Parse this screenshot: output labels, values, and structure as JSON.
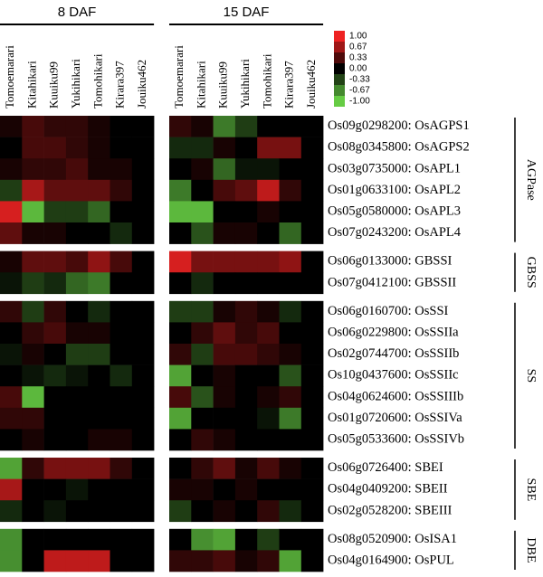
{
  "chart_data": {
    "type": "heatmap",
    "panels": [
      "8 DAF",
      "15 DAF"
    ],
    "columns": [
      "Tomoemarari",
      "Kitahikari",
      "Kuuiku99",
      "Yukihikari",
      "Tomohikari",
      "Kirara397",
      "Jouiku462"
    ],
    "colorscale": {
      "min": -1,
      "max": 1,
      "low": "#66cc44",
      "mid": "#000000",
      "high": "#ee2222"
    },
    "colorbar_ticks": [
      {
        "value": 1,
        "label": "1.00"
      },
      0.67,
      0.33,
      {
        "value": 0,
        "label": "0.00"
      },
      -0.33,
      -0.67,
      {
        "value": -1,
        "label": "-1.00"
      }
    ],
    "groups": [
      {
        "name": "AGPase",
        "rows": [
          {
            "label": "Os09g0298200: OsAGPS1",
            "values": [
              [
                0.1,
                0.3,
                0.2,
                0.2,
                0.1,
                0,
                0
              ],
              [
                0.2,
                0.1,
                -0.6,
                -0.3,
                0,
                0,
                0
              ]
            ]
          },
          {
            "label": "Os08g0345800: OsAGPS2",
            "values": [
              [
                0,
                0.3,
                0.3,
                0.2,
                0.1,
                0,
                0
              ],
              [
                -0.2,
                -0.2,
                0.1,
                0,
                0.5,
                0.5,
                0
              ]
            ]
          },
          {
            "label": "Os03g0735000: OsAPL1",
            "values": [
              [
                0.1,
                0.2,
                0.2,
                0.3,
                0.1,
                0.1,
                0
              ],
              [
                0,
                0.1,
                -0.5,
                -0.1,
                -0.1,
                0,
                0
              ]
            ]
          },
          {
            "label": "Os01g0633100: OsAPL2",
            "values": [
              [
                -0.3,
                0.7,
                0.4,
                0.4,
                0.4,
                0.2,
                0
              ],
              [
                -0.6,
                0,
                0.3,
                0.4,
                0.8,
                0.2,
                0
              ]
            ]
          },
          {
            "label": "Os05g0580000: OsAPL3",
            "values": [
              [
                0.9,
                -0.9,
                -0.3,
                -0.3,
                -0.5,
                0,
                0
              ],
              [
                -0.9,
                -0.9,
                0,
                0,
                0.1,
                0,
                0
              ]
            ]
          },
          {
            "label": "Os07g0243200: OsAPL4",
            "values": [
              [
                0.4,
                0.1,
                0.1,
                0,
                0,
                -0.2,
                0
              ],
              [
                0,
                -0.4,
                0.1,
                0.1,
                0,
                -0.5,
                0
              ]
            ]
          }
        ]
      },
      {
        "name": "GBSS",
        "rows": [
          {
            "label": "Os06g0133000: GBSSI",
            "values": [
              [
                0.1,
                0.4,
                0.4,
                0.3,
                0.6,
                0.3,
                0
              ],
              [
                0.9,
                0.5,
                0.5,
                0.5,
                0.5,
                0.6,
                0
              ]
            ]
          },
          {
            "label": "Os07g0412100: GBSSII",
            "values": [
              [
                -0.1,
                -0.3,
                -0.2,
                -0.5,
                -0.6,
                0,
                0
              ],
              [
                0,
                -0.2,
                0,
                0,
                0,
                0,
                0
              ]
            ]
          }
        ]
      },
      {
        "name": "SS",
        "rows": [
          {
            "label": "Os06g0160700: OsSSI",
            "values": [
              [
                0.2,
                -0.3,
                0.2,
                0,
                -0.2,
                0,
                0
              ],
              [
                -0.3,
                -0.3,
                0.1,
                0.2,
                0.1,
                -0.2,
                0
              ]
            ]
          },
          {
            "label": "Os06g0229800: OsSSIIa",
            "values": [
              [
                0,
                0.2,
                0.3,
                0.1,
                0.1,
                0,
                0
              ],
              [
                0,
                0.2,
                0.4,
                0.2,
                0.3,
                0,
                0
              ]
            ]
          },
          {
            "label": "Os02g0744700: OsSSIIb",
            "values": [
              [
                -0.1,
                0.1,
                0,
                -0.3,
                -0.3,
                0,
                0
              ],
              [
                0.2,
                -0.3,
                0.3,
                0.3,
                0.2,
                0.1,
                0
              ]
            ]
          },
          {
            "label": "Os10g0437600: OsSSIIc",
            "values": [
              [
                0,
                -0.1,
                -0.2,
                -0.1,
                0,
                -0.2,
                0
              ],
              [
                -0.8,
                0,
                0.1,
                0,
                0,
                -0.4,
                0
              ]
            ]
          },
          {
            "label": "Os04g0624600: OsSSIIIb",
            "values": [
              [
                0.3,
                -0.9,
                0,
                0,
                0,
                0,
                0
              ],
              [
                0.3,
                -0.4,
                0.1,
                0,
                0.1,
                0.2,
                0
              ]
            ]
          },
          {
            "label": "Os01g0720600: OsSSIVa",
            "values": [
              [
                0.2,
                0.2,
                0,
                0,
                0,
                0,
                0
              ],
              [
                -0.8,
                0,
                0,
                0,
                -0.1,
                -0.6,
                0
              ]
            ]
          },
          {
            "label": "Os05g0533600: OsSSIVb",
            "values": [
              [
                0,
                0.1,
                0,
                0,
                0.1,
                0.1,
                0
              ],
              [
                0,
                0.2,
                0.1,
                0,
                0,
                0,
                0
              ]
            ]
          }
        ]
      },
      {
        "name": "SBE",
        "rows": [
          {
            "label": "Os06g0726400: SBEI",
            "values": [
              [
                -0.8,
                0.2,
                0.5,
                0.5,
                0.5,
                0.2,
                0
              ],
              [
                0,
                0.2,
                0.4,
                0.1,
                0.3,
                0.1,
                0
              ]
            ]
          },
          {
            "label": "Os04g0409200: SBEII",
            "values": [
              [
                0.7,
                0,
                0,
                -0.1,
                0,
                0,
                0
              ],
              [
                0.1,
                0.1,
                0,
                0.1,
                0,
                0,
                0
              ]
            ]
          },
          {
            "label": "Os02g0528200: SBEIII",
            "values": [
              [
                -0.2,
                0,
                -0.1,
                0,
                0,
                0,
                0
              ],
              [
                -0.3,
                0,
                0.1,
                0,
                0.2,
                -0.2,
                0
              ]
            ]
          }
        ]
      },
      {
        "name": "DBE",
        "rows": [
          {
            "label": "Os08g0520900: OsISA1",
            "values": [
              [
                -0.7,
                0,
                0,
                0,
                0,
                0,
                0
              ],
              [
                0,
                -0.7,
                -0.8,
                0,
                -0.3,
                0,
                0
              ]
            ]
          },
          {
            "label": "Os04g0164900: OsPUL",
            "values": [
              [
                -0.7,
                0,
                0.8,
                0.8,
                0.8,
                0,
                0
              ],
              [
                0.2,
                0.2,
                0.3,
                0.1,
                0.2,
                -0.8,
                0
              ]
            ]
          }
        ]
      }
    ]
  }
}
